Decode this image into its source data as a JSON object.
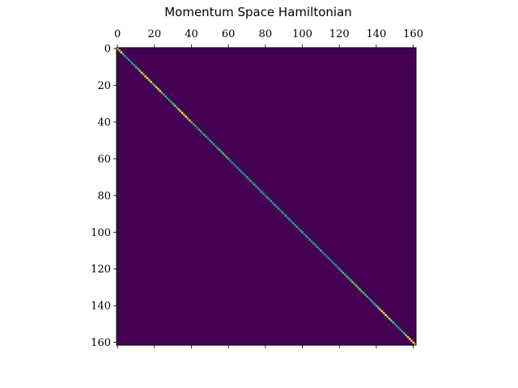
{
  "chart_data": {
    "type": "heatmap",
    "title": "Momentum Space Hamiltonian",
    "xlabel": "",
    "ylabel": "",
    "shape": [
      162,
      162
    ],
    "x_ticks": [
      0,
      20,
      40,
      60,
      80,
      100,
      120,
      140,
      160
    ],
    "y_ticks": [
      0,
      20,
      40,
      60,
      80,
      100,
      120,
      140,
      160
    ],
    "x_axis_position": "top",
    "y_axis_inverted": true,
    "grid": false,
    "colormap": "viridis",
    "background_value_color": "#440154",
    "nonzero_structure": "diagonal",
    "diagonal_values": [
      1.0,
      0.8,
      1.0,
      0.7,
      0.6,
      0.5,
      0.6,
      0.5,
      0.6,
      0.6,
      0.7,
      0.7,
      0.8,
      1.0,
      0.8,
      0.9,
      1.0,
      0.9,
      1.0,
      0.7,
      0.8,
      1.0,
      0.9,
      1.0,
      0.7,
      0.6,
      0.6,
      0.5,
      0.6,
      0.6,
      0.7,
      0.8,
      0.7,
      0.9,
      0.9,
      1.0,
      0.9,
      1.0,
      0.8,
      0.9,
      0.7,
      0.6,
      0.6,
      0.5,
      0.6,
      0.6,
      0.5,
      0.6,
      0.6,
      0.5,
      0.6,
      0.6,
      0.6,
      0.5,
      0.6,
      0.7,
      0.6,
      0.7,
      0.6,
      0.7,
      0.6,
      0.5,
      0.5,
      0.4,
      0.5,
      0.5,
      0.5,
      0.5,
      0.5,
      0.5,
      0.6,
      0.5,
      0.6,
      0.5,
      0.6,
      0.5,
      0.6,
      0.5,
      0.6,
      0.5,
      0.5,
      0.6,
      0.5,
      0.6,
      0.5,
      0.6,
      0.5,
      0.6,
      0.5,
      0.6,
      0.5,
      0.6,
      0.5,
      0.6,
      0.5,
      0.6,
      0.5,
      0.6,
      0.5,
      0.6,
      0.6,
      0.5,
      0.6,
      0.5,
      0.6,
      0.5,
      0.6,
      0.5,
      0.6,
      0.5,
      0.6,
      0.5,
      0.5,
      0.4,
      0.5,
      0.5,
      0.5,
      0.5,
      0.5,
      0.5,
      0.6,
      0.6,
      0.7,
      0.6,
      0.7,
      0.6,
      0.7,
      0.8,
      0.7,
      0.8,
      0.7,
      0.8,
      0.7,
      0.7,
      0.6,
      0.6,
      0.5,
      0.6,
      0.6,
      0.6,
      0.7,
      0.8,
      0.9,
      1.0,
      0.9,
      1.0,
      0.8,
      0.9,
      0.8,
      0.7,
      0.6,
      0.6,
      0.5,
      0.6,
      0.6,
      0.7,
      0.8,
      0.9,
      1.0,
      0.9,
      1.0,
      1.0
    ]
  }
}
